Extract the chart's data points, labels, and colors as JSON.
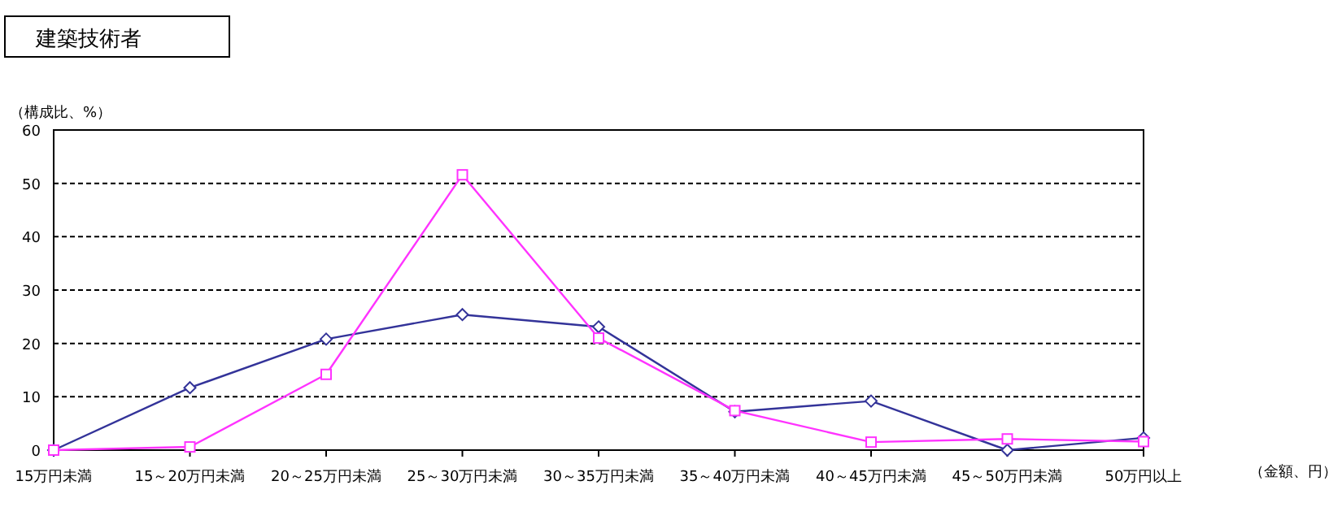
{
  "chart_data": {
    "type": "line",
    "title": "建築技術者",
    "ylabel": "（構成比、%）",
    "xlabel": "（金額、円）",
    "categories": [
      "15万円未満",
      "15～20万円未満",
      "20～25万円未満",
      "25～30万円未満",
      "30～35万円未満",
      "35～40万円未満",
      "40～45万円未満",
      "45～50万円未満",
      "50万円以上"
    ],
    "series": [
      {
        "color": "#333399",
        "marker": "diamond",
        "values": [
          0,
          11.7,
          20.8,
          25.4,
          23.1,
          7.2,
          9.2,
          0,
          2.3
        ]
      },
      {
        "color": "#ff33ff",
        "marker": "square",
        "values": [
          0,
          0.6,
          14.2,
          51.6,
          21,
          7.4,
          1.5,
          2.1,
          1.6
        ]
      }
    ],
    "ylim": [
      0,
      60
    ],
    "yticks": [
      0,
      10,
      20,
      30,
      40,
      50,
      60
    ],
    "grid": "y"
  }
}
